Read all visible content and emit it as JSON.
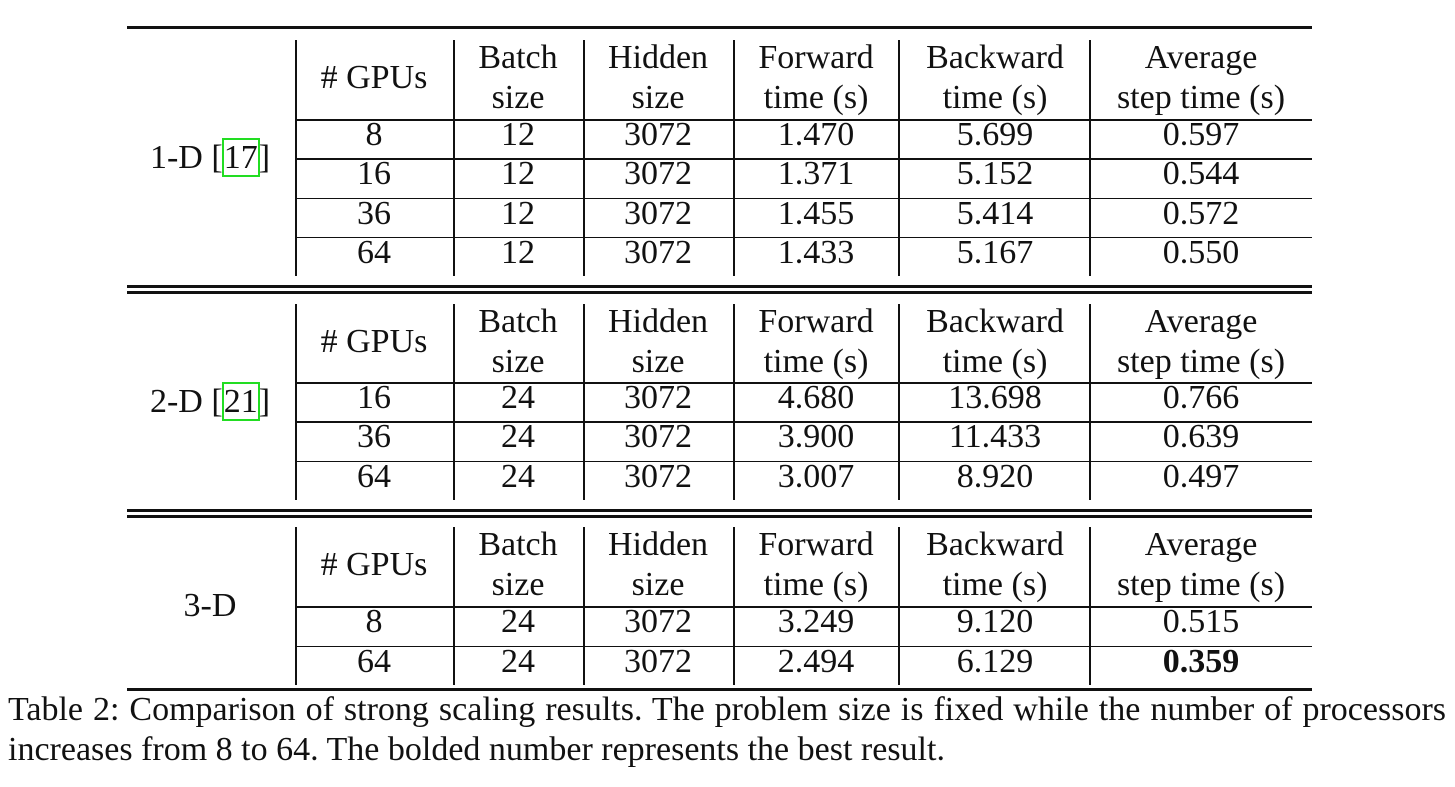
{
  "table": {
    "headers": [
      [
        "# GPUs"
      ],
      [
        "Batch",
        "size"
      ],
      [
        "Hidden",
        "size"
      ],
      [
        "Forward",
        "time (s)"
      ],
      [
        "Backward",
        "time (s)"
      ],
      [
        "Average",
        "step time (s)"
      ]
    ],
    "groups": [
      {
        "label": "1-D [",
        "cite": "17",
        "label_close": "]",
        "rows": [
          [
            "8",
            "12",
            "3072",
            "1.470",
            "5.699",
            "0.597"
          ],
          [
            "16",
            "12",
            "3072",
            "1.371",
            "5.152",
            "0.544"
          ],
          [
            "36",
            "12",
            "3072",
            "1.455",
            "5.414",
            "0.572"
          ],
          [
            "64",
            "12",
            "3072",
            "1.433",
            "5.167",
            "0.550"
          ]
        ]
      },
      {
        "label": "2-D [",
        "cite": "21",
        "label_close": "]",
        "rows": [
          [
            "16",
            "24",
            "3072",
            "4.680",
            "13.698",
            "0.766"
          ],
          [
            "36",
            "24",
            "3072",
            "3.900",
            "11.433",
            "0.639"
          ],
          [
            "64",
            "24",
            "3072",
            "3.007",
            "8.920",
            "0.497"
          ]
        ]
      },
      {
        "label": "3-D",
        "cite": "",
        "label_close": "",
        "rows": [
          [
            "8",
            "24",
            "3072",
            "3.249",
            "9.120",
            "0.515"
          ],
          [
            "64",
            "24",
            "3072",
            "2.494",
            "6.129",
            "0.359"
          ]
        ]
      }
    ],
    "bold_cell": {
      "group": 2,
      "row": 1,
      "col": 5
    },
    "caption": "Table 2: Comparison of strong scaling results. The problem size is fixed while the number of processors increases from 8 to 64. The bolded number represents the best result.",
    "cite_color": "#22dd22"
  }
}
